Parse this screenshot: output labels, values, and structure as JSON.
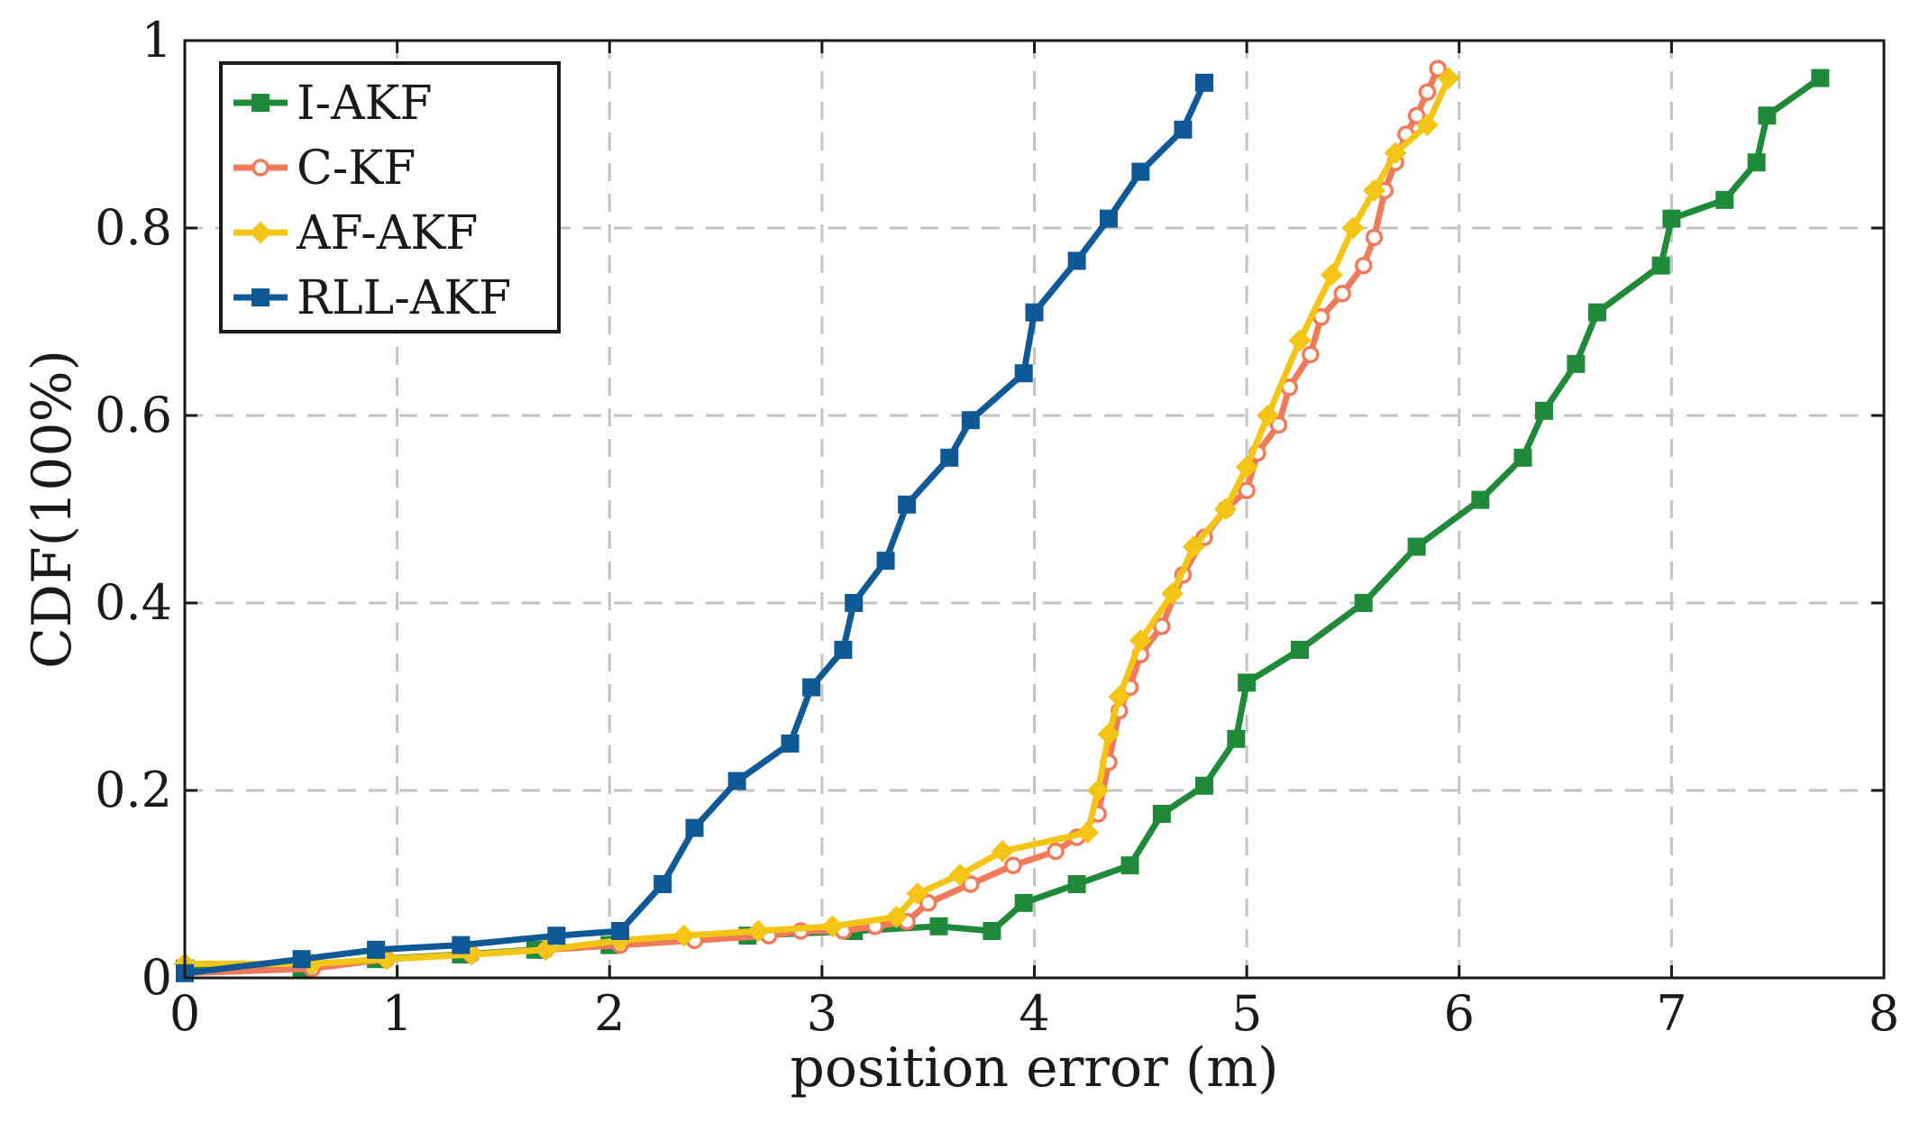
{
  "chart_data": {
    "type": "line",
    "title": "",
    "xlabel": "position error (m)",
    "ylabel": "CDF(100%)",
    "xlim": [
      0,
      8
    ],
    "ylim": [
      0,
      1
    ],
    "xticks": [
      "0",
      "1",
      "2",
      "3",
      "4",
      "5",
      "6",
      "7",
      "8"
    ],
    "yticks": [
      "0",
      "0.2",
      "0.4",
      "0.6",
      "0.8",
      "1"
    ],
    "grid": true,
    "legend_position": "top-left",
    "series": [
      {
        "name": "I-AKF",
        "color": "#1e8a3a",
        "marker": "square",
        "x": [
          0.0,
          0.55,
          0.9,
          1.3,
          1.65,
          2.0,
          2.65,
          3.15,
          3.55,
          3.8,
          3.95,
          4.2,
          4.45,
          4.6,
          4.8,
          4.95,
          5.0,
          5.25,
          5.55,
          5.8,
          6.1,
          6.3,
          6.4,
          6.55,
          6.65,
          6.95,
          7.0,
          7.25,
          7.4,
          7.45,
          7.7
        ],
        "y": [
          0.01,
          0.01,
          0.02,
          0.025,
          0.03,
          0.035,
          0.045,
          0.05,
          0.055,
          0.05,
          0.08,
          0.1,
          0.12,
          0.175,
          0.205,
          0.255,
          0.315,
          0.35,
          0.4,
          0.46,
          0.51,
          0.555,
          0.605,
          0.655,
          0.71,
          0.76,
          0.81,
          0.83,
          0.87,
          0.92,
          0.96
        ]
      },
      {
        "name": "C-KF",
        "color": "#f07a5a",
        "marker": "circle",
        "x": [
          0.0,
          0.6,
          0.95,
          1.35,
          1.7,
          2.05,
          2.4,
          2.75,
          2.9,
          3.1,
          3.25,
          3.4,
          3.5,
          3.7,
          3.9,
          4.1,
          4.2,
          4.3,
          4.35,
          4.4,
          4.45,
          4.5,
          4.6,
          4.7,
          4.8,
          4.9,
          5.0,
          5.05,
          5.15,
          5.2,
          5.3,
          5.35,
          5.45,
          5.55,
          5.6,
          5.65,
          5.7,
          5.75,
          5.8,
          5.85,
          5.9
        ],
        "y": [
          0.005,
          0.01,
          0.02,
          0.025,
          0.03,
          0.035,
          0.04,
          0.045,
          0.05,
          0.05,
          0.055,
          0.06,
          0.08,
          0.1,
          0.12,
          0.135,
          0.15,
          0.175,
          0.23,
          0.285,
          0.31,
          0.345,
          0.375,
          0.43,
          0.47,
          0.5,
          0.52,
          0.56,
          0.59,
          0.63,
          0.665,
          0.705,
          0.73,
          0.76,
          0.79,
          0.84,
          0.87,
          0.9,
          0.92,
          0.945,
          0.97
        ]
      },
      {
        "name": "AF-AKF",
        "color": "#f5c516",
        "marker": "diamond",
        "x": [
          0.0,
          0.6,
          0.95,
          1.35,
          1.7,
          2.05,
          2.35,
          2.7,
          3.05,
          3.35,
          3.45,
          3.65,
          3.85,
          4.25,
          4.3,
          4.35,
          4.4,
          4.5,
          4.65,
          4.75,
          4.9,
          5.0,
          5.1,
          5.25,
          5.4,
          5.5,
          5.6,
          5.7,
          5.85,
          5.95
        ],
        "y": [
          0.015,
          0.015,
          0.02,
          0.025,
          0.03,
          0.04,
          0.045,
          0.05,
          0.055,
          0.065,
          0.09,
          0.11,
          0.135,
          0.155,
          0.2,
          0.26,
          0.3,
          0.36,
          0.41,
          0.46,
          0.5,
          0.545,
          0.6,
          0.68,
          0.75,
          0.8,
          0.84,
          0.88,
          0.91,
          0.96
        ]
      },
      {
        "name": "RLL-AKF",
        "color": "#0f5a96",
        "marker": "square",
        "x": [
          0.0,
          0.55,
          0.9,
          1.3,
          1.75,
          2.05,
          2.25,
          2.4,
          2.6,
          2.85,
          2.95,
          3.1,
          3.15,
          3.3,
          3.4,
          3.6,
          3.7,
          3.95,
          4.0,
          4.2,
          4.35,
          4.5,
          4.7,
          4.8
        ],
        "y": [
          0.005,
          0.02,
          0.03,
          0.035,
          0.045,
          0.05,
          0.1,
          0.16,
          0.21,
          0.25,
          0.31,
          0.35,
          0.4,
          0.445,
          0.505,
          0.555,
          0.595,
          0.645,
          0.71,
          0.765,
          0.81,
          0.86,
          0.905,
          0.955
        ]
      }
    ]
  }
}
